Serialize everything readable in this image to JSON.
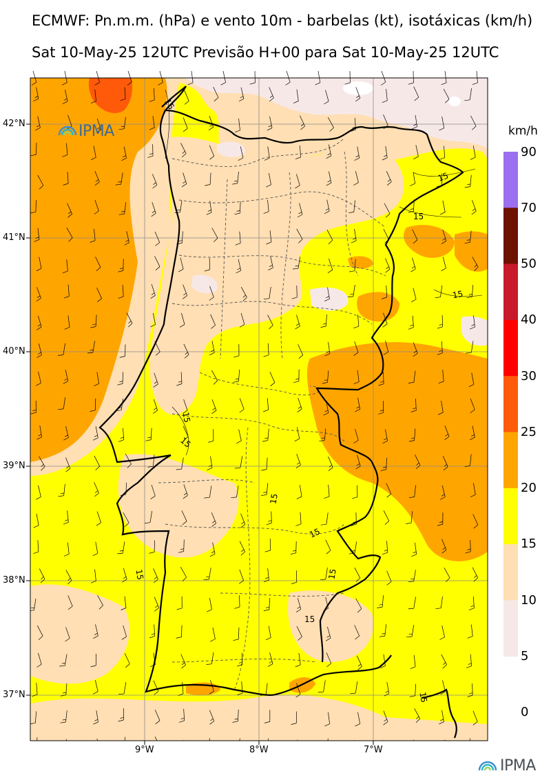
{
  "header": {
    "title_line1": "ECMWF: Pn.m.m. (hPa) e vento 10m - barbelas (kt), isotáxicas (km/h)",
    "title_line2": "Sat 10-May-25 12UTC Previsão H+00 para Sat 10-May-25 12UTC"
  },
  "map": {
    "lat_labels": [
      "42°N",
      "41°N",
      "40°N",
      "39°N",
      "38°N",
      "37°N"
    ],
    "lon_labels": [
      "9°W",
      "8°W",
      "7°W"
    ],
    "contour_labels": [
      "15",
      "15",
      "15",
      "15",
      "15",
      "15",
      "15",
      "15",
      "15",
      "15",
      "15",
      "15"
    ],
    "logo_text": "IPMA"
  },
  "colorbar": {
    "unit": "km/h",
    "levels": [
      "90",
      "70",
      "50",
      "40",
      "30",
      "25",
      "20",
      "15",
      "10",
      "5",
      "0"
    ],
    "colors": [
      "#9b6ff0",
      "#6e1200",
      "#c81a2a",
      "#ff0000",
      "#ff5a0a",
      "#ffa500",
      "#ffff00",
      "#ffdfb3",
      "#f7e8e8",
      "#ffffff"
    ]
  },
  "footer": {
    "logo_text": "IPMA"
  }
}
